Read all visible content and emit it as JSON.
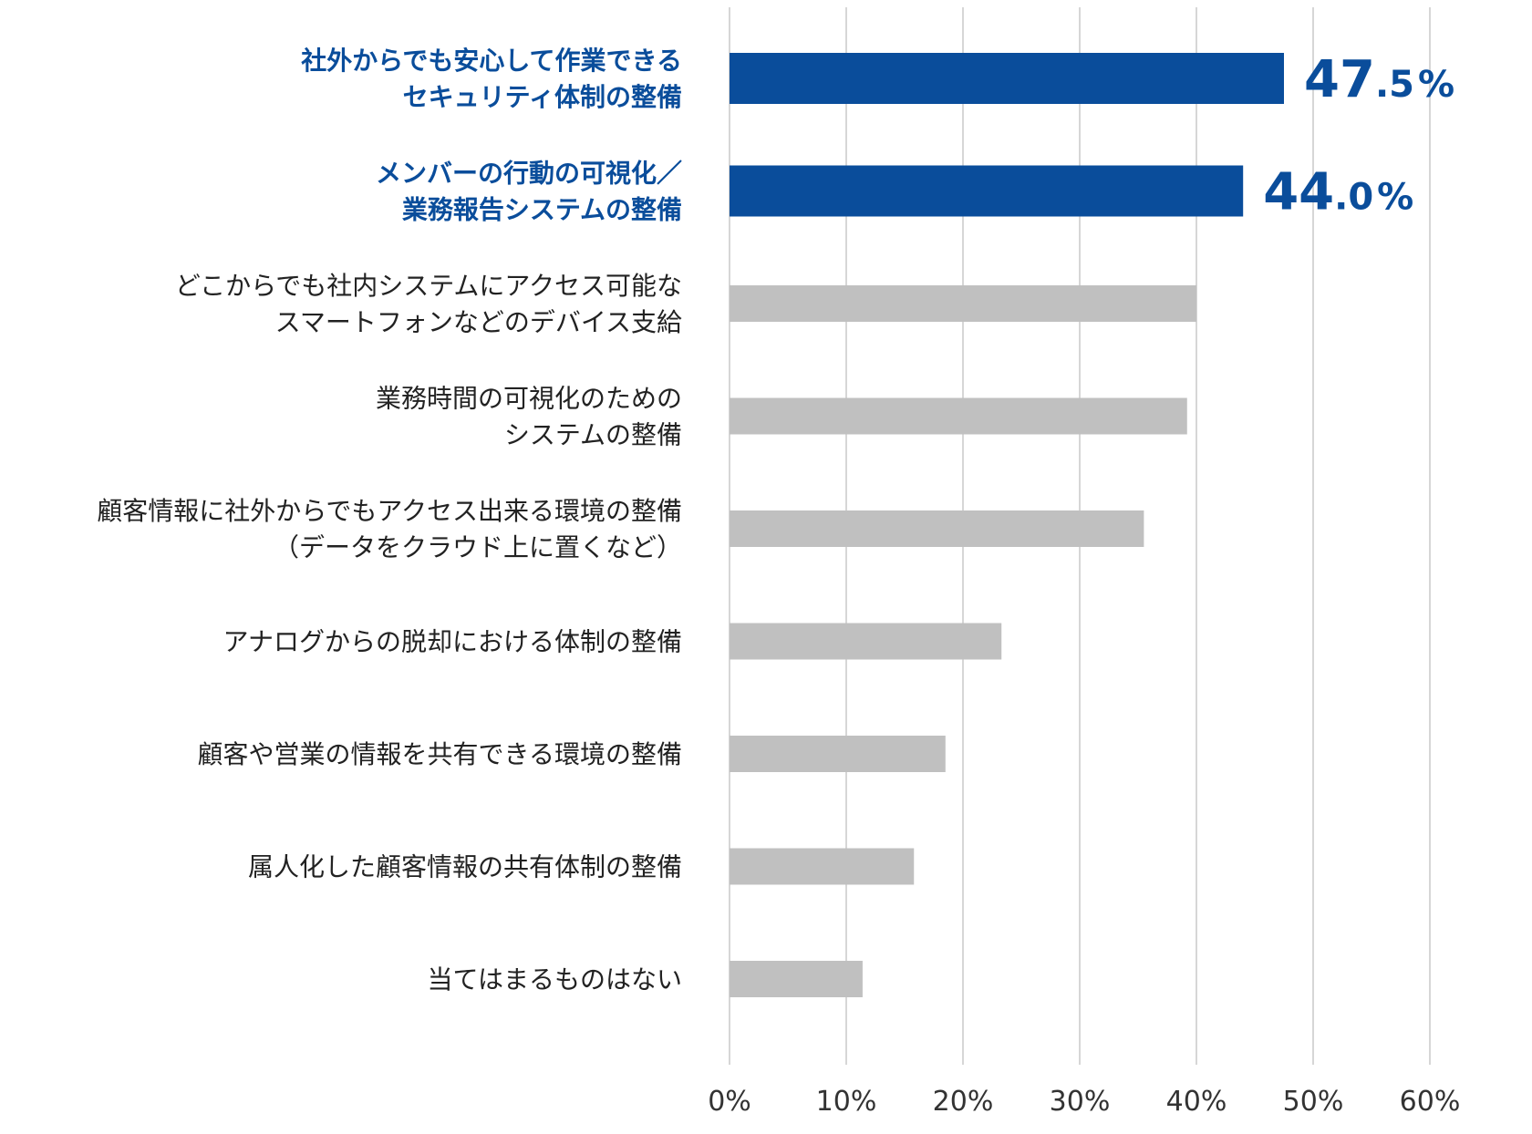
{
  "chart_data": {
    "type": "bar",
    "orientation": "horizontal",
    "title": "",
    "xlabel": "",
    "ylabel": "",
    "xlim": [
      0,
      60
    ],
    "x_ticks": [
      "0%",
      "10%",
      "20%",
      "30%",
      "40%",
      "50%",
      "60%"
    ],
    "grid": "vertical",
    "legend": "none",
    "categories": [
      [
        "社外からでも安心して作業できる",
        "セキュリティ体制の整備"
      ],
      [
        "メンバーの行動の可視化／",
        "業務報告システムの整備"
      ],
      [
        "どこからでも社内システムにアクセス可能な",
        "スマートフォンなどのデバイス支給"
      ],
      [
        "業務時間の可視化のための",
        "システムの整備"
      ],
      [
        "顧客情報に社外からでもアクセス出来る環境の整備",
        "（データをクラウド上に置くなど）"
      ],
      [
        "アナログからの脱却における体制の整備"
      ],
      [
        "顧客や営業の情報を共有できる環境の整備"
      ],
      [
        "属人化した顧客情報の共有体制の整備"
      ],
      [
        "当てはまるものはない"
      ]
    ],
    "values": [
      47.5,
      44.0,
      40.0,
      39.2,
      35.5,
      23.3,
      18.5,
      15.8,
      11.4
    ],
    "highlighted": [
      true,
      true,
      false,
      false,
      false,
      false,
      false,
      false,
      false
    ],
    "data_labels": [
      {
        "integer": "47",
        "decimal": ".5",
        "unit": "%"
      },
      {
        "integer": "44",
        "decimal": ".0",
        "unit": "%"
      },
      null,
      null,
      null,
      null,
      null,
      null,
      null
    ],
    "colors": {
      "highlight": "#0a4d9b",
      "default": "#c0c0c0",
      "grid": "#c9c9c9",
      "label_highlight": "#0a4d9b",
      "label_default": "#222222"
    }
  }
}
